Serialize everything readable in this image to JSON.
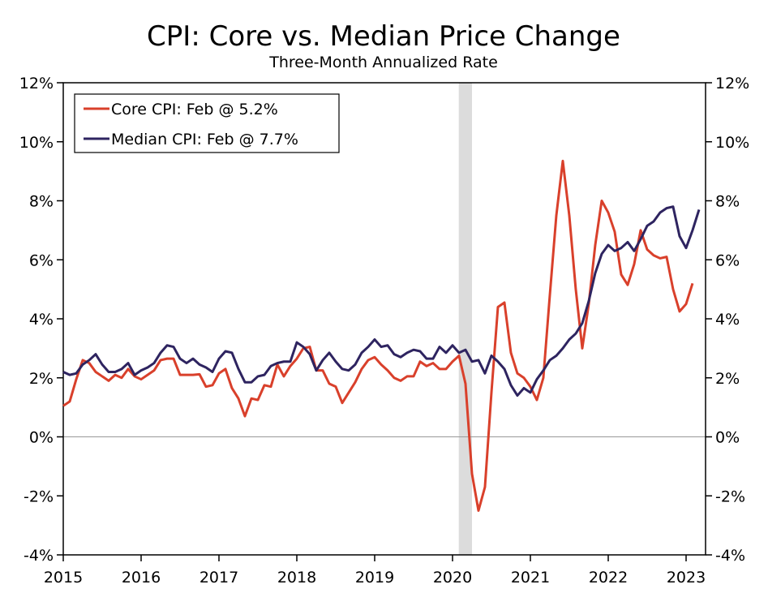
{
  "chart_data": {
    "type": "line",
    "title": "CPI: Core vs. Median Price Change",
    "subtitle": "Three-Month Annualized Rate",
    "xlabel": "",
    "ylabel": "",
    "xlim": [
      2015.0,
      2023.25
    ],
    "ylim": [
      -4,
      12
    ],
    "y_ticks": [
      -4,
      -2,
      0,
      2,
      4,
      6,
      8,
      10,
      12
    ],
    "y_tick_labels": [
      "-4%",
      "-2%",
      "0%",
      "2%",
      "4%",
      "6%",
      "8%",
      "10%",
      "12%"
    ],
    "x_ticks": [
      2015,
      2016,
      2017,
      2018,
      2019,
      2020,
      2021,
      2022,
      2023
    ],
    "x_tick_labels": [
      "2015",
      "2016",
      "2017",
      "2018",
      "2019",
      "2020",
      "2021",
      "2022",
      "2023"
    ],
    "zero_line": 0,
    "recession_band": [
      2020.08,
      2020.25
    ],
    "legend_position": "top-left",
    "colors": {
      "core": "#d9402b",
      "median": "#2e2460",
      "recession": "#dcdcdc",
      "zero": "#999999"
    },
    "series": [
      {
        "name": "Core CPI: Feb @ 5.2%",
        "key": "core",
        "start": 2015.0,
        "step": 0.08333,
        "values": [
          1.05,
          1.2,
          1.95,
          2.6,
          2.5,
          2.2,
          2.05,
          1.9,
          2.1,
          2.0,
          2.3,
          2.05,
          1.95,
          2.1,
          2.25,
          2.6,
          2.65,
          2.65,
          2.1,
          2.1,
          2.1,
          2.12,
          1.7,
          1.75,
          2.15,
          2.3,
          1.65,
          1.3,
          0.7,
          1.3,
          1.25,
          1.75,
          1.7,
          2.45,
          2.05,
          2.4,
          2.65,
          3.0,
          3.05,
          2.25,
          2.25,
          1.8,
          1.7,
          1.15,
          1.5,
          1.85,
          2.3,
          2.6,
          2.7,
          2.45,
          2.25,
          2.0,
          1.9,
          2.05,
          2.05,
          2.55,
          2.4,
          2.5,
          2.3,
          2.3,
          2.55,
          2.75,
          1.8,
          -1.25,
          -2.5,
          -1.7,
          1.5,
          4.4,
          4.55,
          2.85,
          2.15,
          2.0,
          1.7,
          1.25,
          2.0,
          4.8,
          7.5,
          9.35,
          7.5,
          5.0,
          3.0,
          4.5,
          6.5,
          8.0,
          7.6,
          6.95,
          5.5,
          5.15,
          5.85,
          7.0,
          6.35,
          6.15,
          6.05,
          6.1,
          5.0,
          4.25,
          4.5,
          5.2
        ]
      },
      {
        "name": "Median CPI: Feb @ 7.7%",
        "key": "median",
        "start": 2015.0,
        "step": 0.08333,
        "values": [
          2.2,
          2.1,
          2.15,
          2.45,
          2.6,
          2.8,
          2.45,
          2.2,
          2.2,
          2.3,
          2.5,
          2.1,
          2.25,
          2.35,
          2.5,
          2.85,
          3.1,
          3.05,
          2.65,
          2.5,
          2.65,
          2.45,
          2.35,
          2.2,
          2.65,
          2.9,
          2.85,
          2.3,
          1.85,
          1.85,
          2.05,
          2.1,
          2.4,
          2.5,
          2.55,
          2.55,
          3.2,
          3.05,
          2.8,
          2.25,
          2.6,
          2.85,
          2.55,
          2.3,
          2.25,
          2.45,
          2.85,
          3.05,
          3.3,
          3.05,
          3.1,
          2.8,
          2.7,
          2.85,
          2.95,
          2.9,
          2.65,
          2.65,
          3.05,
          2.85,
          3.1,
          2.85,
          2.95,
          2.55,
          2.6,
          2.15,
          2.75,
          2.55,
          2.3,
          1.75,
          1.4,
          1.65,
          1.5,
          1.95,
          2.25,
          2.6,
          2.75,
          3.0,
          3.3,
          3.5,
          3.85,
          4.6,
          5.55,
          6.2,
          6.5,
          6.3,
          6.4,
          6.6,
          6.3,
          6.7,
          7.15,
          7.3,
          7.6,
          7.75,
          7.8,
          6.8,
          6.4,
          7.0,
          7.7
        ]
      }
    ]
  }
}
